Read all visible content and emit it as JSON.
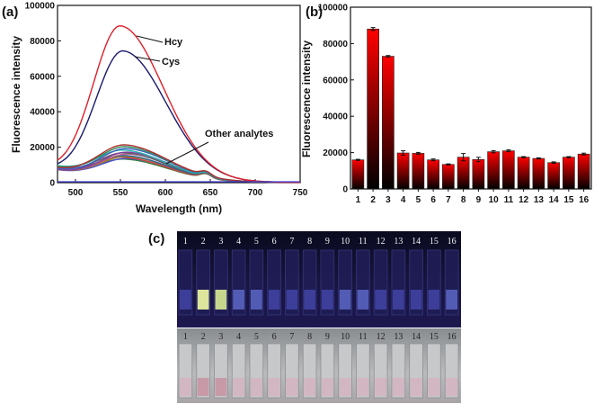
{
  "panels": {
    "a": "(a)",
    "b": "(b)",
    "c": "(c)"
  },
  "photo_labels": [
    "1",
    "2",
    "3",
    "4",
    "5",
    "6",
    "7",
    "8",
    "9",
    "10",
    "11",
    "12",
    "13",
    "14",
    "15",
    "16"
  ],
  "chart_data": [
    {
      "type": "line",
      "panel": "(a)",
      "xlabel": "Wavelength (nm)",
      "ylabel": "Fluorescence intensity",
      "xlim": [
        480,
        750
      ],
      "ylim": [
        0,
        100000
      ],
      "x_ticks": [
        500,
        550,
        600,
        650,
        700,
        750
      ],
      "y_ticks": [
        0,
        20000,
        40000,
        60000,
        80000,
        100000
      ],
      "annotations": [
        "Hcy",
        "Cys",
        "Other analytes"
      ],
      "series": [
        {
          "label": "Hcy",
          "peak_x": 550,
          "peak_y": 88000,
          "baseline_y": 7000,
          "color": "#e0202a"
        },
        {
          "label": "Cys",
          "peak_x": 553,
          "peak_y": 74000,
          "baseline_y": 7000,
          "color": "#1a1a6e"
        },
        {
          "peak_x": 556,
          "peak_y": 21000,
          "baseline_y": 8000,
          "color": "#b03030"
        },
        {
          "peak_x": 557,
          "peak_y": 20000,
          "baseline_y": 8500,
          "color": "#2e8b57"
        },
        {
          "peak_x": 558,
          "peak_y": 19000,
          "baseline_y": 7500,
          "color": "#4060c0"
        },
        {
          "peak_x": 555,
          "peak_y": 18000,
          "baseline_y": 9000,
          "color": "#20b0b0"
        },
        {
          "peak_x": 559,
          "peak_y": 17000,
          "baseline_y": 7000,
          "color": "#8040a0"
        },
        {
          "peak_x": 556,
          "peak_y": 16500,
          "baseline_y": 8000,
          "color": "#606060"
        },
        {
          "peak_x": 560,
          "peak_y": 16000,
          "baseline_y": 7500,
          "color": "#c06080"
        },
        {
          "peak_x": 557,
          "peak_y": 15000,
          "baseline_y": 8000,
          "color": "#3060a0"
        },
        {
          "peak_x": 558,
          "peak_y": 14500,
          "baseline_y": 7000,
          "color": "#a08020"
        },
        {
          "peak_x": 555,
          "peak_y": 14000,
          "baseline_y": 8500,
          "color": "#d04040"
        },
        {
          "peak_x": 559,
          "peak_y": 13500,
          "baseline_y": 7000,
          "color": "#5050d0"
        },
        {
          "peak_x": 556,
          "peak_y": 13000,
          "baseline_y": 7500,
          "color": "#308040"
        }
      ],
      "blank_series": {
        "y": 0,
        "color": "#3b3bd0"
      }
    },
    {
      "type": "bar",
      "panel": "(b)",
      "ylabel": "Fluorescence intensity",
      "ylim": [
        0,
        100000
      ],
      "y_ticks": [
        0,
        20000,
        40000,
        60000,
        80000,
        100000
      ],
      "categories": [
        "1",
        "2",
        "3",
        "4",
        "5",
        "6",
        "7",
        "8",
        "9",
        "10",
        "11",
        "12",
        "13",
        "14",
        "15",
        "16"
      ],
      "values": [
        16000,
        88000,
        73000,
        19800,
        19600,
        16000,
        13500,
        17500,
        16200,
        20500,
        21000,
        17500,
        16800,
        14500,
        17500,
        19200
      ],
      "errors": [
        300,
        800,
        400,
        1200,
        500,
        500,
        300,
        2000,
        1200,
        600,
        500,
        300,
        300,
        400,
        300,
        500
      ],
      "bar_gradient": [
        "#ff0000",
        "#000000"
      ]
    }
  ]
}
